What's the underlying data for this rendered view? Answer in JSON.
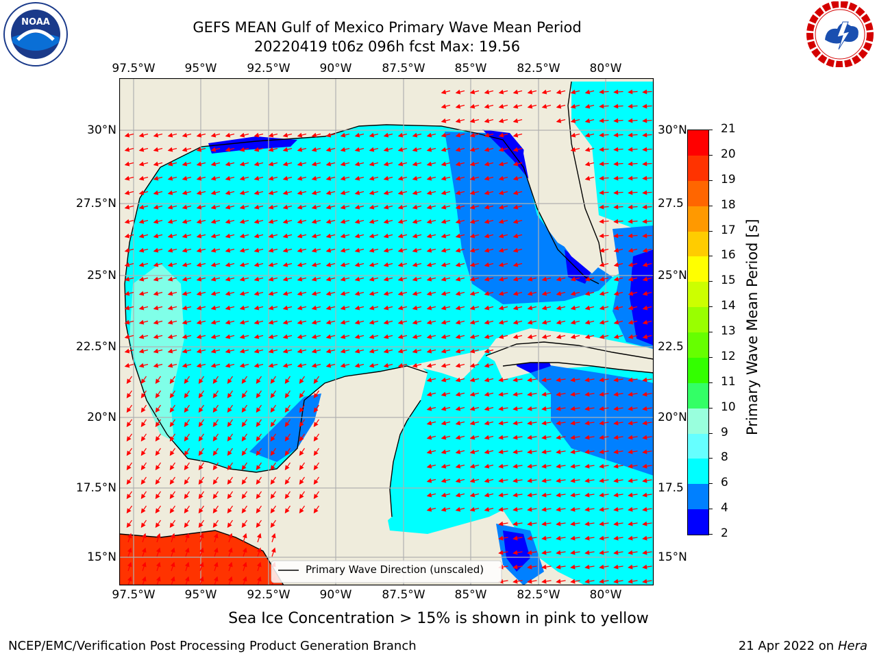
{
  "title": {
    "line1": "GEFS MEAN Gulf of Mexico Primary Wave Mean Period",
    "line2": "20220419 t06z 096h fcst   Max: 19.56"
  },
  "map": {
    "lon_labels": [
      "97.5°W",
      "95°W",
      "92.5°W",
      "90°W",
      "87.5°W",
      "85°W",
      "82.5°W",
      "80°W"
    ],
    "lat_labels_left": [
      "30°N",
      "27.5°N",
      "25°N",
      "22.5°N",
      "20°N",
      "17.5°N",
      "15°N"
    ],
    "lat_labels_right": [
      "30°N",
      "27.5",
      "25°N",
      "22.5",
      "20°N",
      "17.5",
      "15°N"
    ],
    "legend_label": "Primary Wave Direction (unscaled)",
    "colors": {
      "land": "#efecdc",
      "shelf_blue": "#0080ff",
      "deep_blue": "#0000ff",
      "cyan": "#00ffff",
      "light_cyan": "#80ffe8",
      "red": "#ff3300",
      "arrow": "#ff0000",
      "grid": "#b0b0b0"
    }
  },
  "colorbar": {
    "title": "Primary Wave Mean Period [s]",
    "ticks": [
      "21",
      "20",
      "19",
      "18",
      "17",
      "16",
      "15",
      "14",
      "13",
      "12",
      "11",
      "10",
      "9",
      "8",
      "6",
      "4",
      "2"
    ],
    "colors": [
      "#ff0000",
      "#ff3300",
      "#ff6600",
      "#ff9900",
      "#ffcc00",
      "#ffff00",
      "#ccff00",
      "#99ff00",
      "#66ff00",
      "#33ff00",
      "#33ff66",
      "#99ffdd",
      "#66ffff",
      "#00ffff",
      "#0080ff",
      "#0000ff"
    ]
  },
  "sea_ice_note": "Sea Ice Concentration > 15% is shown in pink to yellow",
  "footer": {
    "left": "NCEP/EMC/Verification Post Processing Product Generation Branch",
    "right_date": "21 Apr 2022 on ",
    "right_host": "Hera"
  },
  "logos": {
    "left": "NOAA",
    "right": "NATIONAL WEATHER SERVICE"
  }
}
